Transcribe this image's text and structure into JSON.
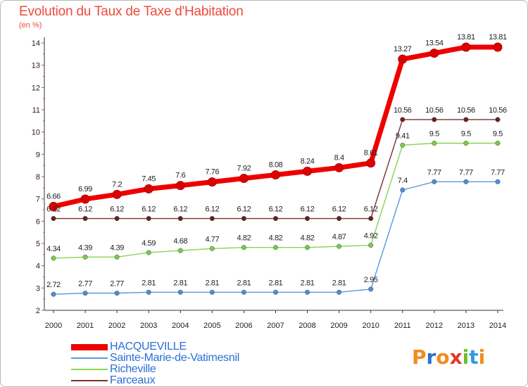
{
  "title": "Evolution du Taux de Taxe d'Habitation",
  "unit": "(en %)",
  "logo": {
    "text": "Proxiti",
    "letters": [
      {
        "char": "P",
        "color": "#f28c1e"
      },
      {
        "char": "r",
        "color": "#2f6fd0"
      },
      {
        "char": "o",
        "color": "#f28c1e"
      },
      {
        "char": "x",
        "color": "#e03a2a"
      },
      {
        "char": "i",
        "color": "#6cc02a"
      },
      {
        "char": "t",
        "color": "#2f9fd8"
      },
      {
        "char": "i",
        "color": "#f28c1e"
      }
    ]
  },
  "chart_data": {
    "type": "line",
    "title": "Evolution du Taux de Taxe d'Habitation",
    "ylabel": "(en %)",
    "xlabel": "",
    "x": [
      "2000",
      "2001",
      "2002",
      "2003",
      "2004",
      "2005",
      "2006",
      "2007",
      "2008",
      "2009",
      "2010",
      "2011",
      "2012",
      "2013",
      "2014"
    ],
    "yticks": [
      "2",
      "3",
      "4",
      "5",
      "6",
      "7",
      "8",
      "9",
      "10",
      "11",
      "12",
      "13",
      "14"
    ],
    "ylim": [
      2,
      14
    ],
    "grid": false,
    "legend_position": "bottom-left",
    "series": [
      {
        "name": "HACQUEVILLE",
        "color": "#ee0000",
        "marker": "#dd0000",
        "values": [
          6.66,
          6.99,
          7.2,
          7.45,
          7.6,
          7.76,
          7.92,
          8.08,
          8.24,
          8.4,
          8.61,
          13.27,
          13.54,
          13.81,
          13.81
        ],
        "labels": [
          "6.66",
          "6.99",
          "7.2",
          "7.45",
          "7.6",
          "7.76",
          "7.92",
          "8.08",
          "8.24",
          "8.4",
          "8.61",
          "13.27",
          "13.54",
          "13.81",
          "13.81"
        ]
      },
      {
        "name": "Sainte-Marie-de-Vatimesnil",
        "color": "#5b9bd5",
        "marker": "#4a8fd0",
        "values": [
          2.72,
          2.77,
          2.77,
          2.81,
          2.81,
          2.81,
          2.81,
          2.81,
          2.81,
          2.81,
          2.95,
          7.4,
          7.77,
          7.77,
          7.77
        ],
        "labels": [
          "2.72",
          "2.77",
          "2.77",
          "2.81",
          "2.81",
          "2.81",
          "2.81",
          "2.81",
          "2.81",
          "2.81",
          "2.95",
          "7.4",
          "7.77",
          "7.77",
          "7.77"
        ]
      },
      {
        "name": "Richeville",
        "color": "#88d455",
        "marker": "#7cc94a",
        "values": [
          4.34,
          4.39,
          4.39,
          4.59,
          4.68,
          4.77,
          4.82,
          4.82,
          4.82,
          4.87,
          4.92,
          9.41,
          9.5,
          9.5,
          9.5
        ],
        "labels": [
          "4.34",
          "4.39",
          "4.39",
          "4.59",
          "4.68",
          "4.77",
          "4.82",
          "4.82",
          "4.82",
          "4.87",
          "4.92",
          "9.41",
          "9.5",
          "9.5",
          "9.5"
        ]
      },
      {
        "name": "Farceaux",
        "color": "#7a3030",
        "marker": "#6b1f1f",
        "values": [
          6.12,
          6.12,
          6.12,
          6.12,
          6.12,
          6.12,
          6.12,
          6.12,
          6.12,
          6.12,
          6.12,
          10.56,
          10.56,
          10.56,
          10.56
        ],
        "labels": [
          "6.12",
          "6.12",
          "6.12",
          "6.12",
          "6.12",
          "6.12",
          "6.12",
          "6.12",
          "6.12",
          "6.12",
          "6.12",
          "10.56",
          "10.56",
          "10.56",
          "10.56"
        ]
      }
    ]
  }
}
